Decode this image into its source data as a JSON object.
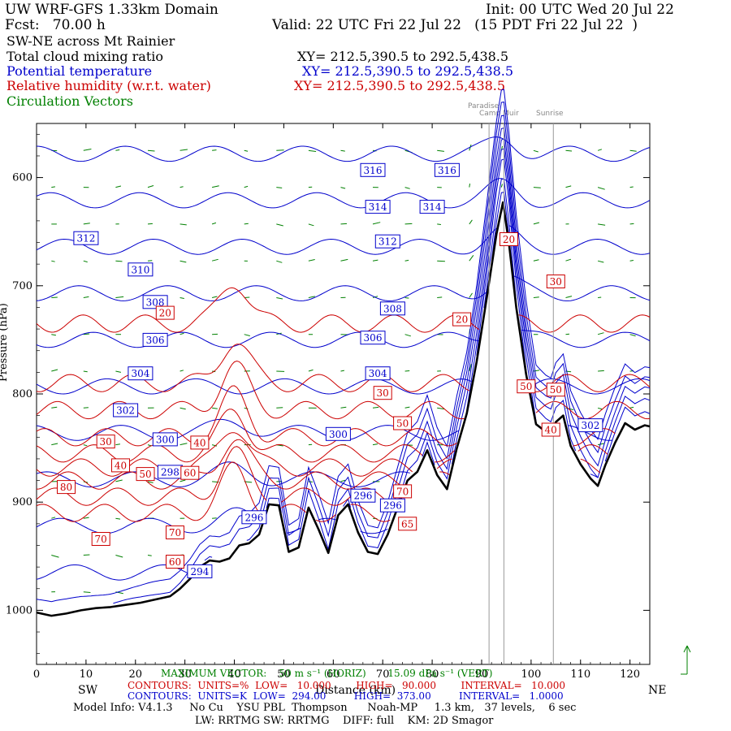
{
  "header": {
    "title": "UW WRF-GFS 1.33km Domain",
    "init": "Init: 00 UTC Wed 20 Jul 22",
    "fcst": "Fcst:   70.00 h",
    "valid": "Valid: 22 UTC Fri 22 Jul 22   (15 PDT Fri 22 Jul 22  )",
    "cross_section": "SW-NE across Mt Rainier",
    "field1": "Total cloud mixing ratio",
    "field2": "Potential temperature",
    "field3": "Relative humidity (w.r.t. water)",
    "field4": "Circulation Vectors",
    "xy1": "XY= 212.5,390.5 to 292.5,438.5",
    "xy2": "XY= 212.5,390.5 to 292.5,438.5",
    "xy3": "XY= 212.5,390.5 to 292.5,438.5"
  },
  "landmarks": [
    "Paradise",
    "Camp Muir",
    "Sunrise"
  ],
  "colors": {
    "theta": "#0000cc",
    "rh": "#cc0000",
    "vectors": "#008000",
    "terrain": "#000000"
  },
  "chart_data": {
    "type": "cross-section",
    "x_unit": "km",
    "xlim": [
      0,
      124
    ],
    "ylim_hpa": [
      1050,
      550
    ],
    "x_ticks": [
      0,
      10,
      20,
      30,
      40,
      50,
      60,
      70,
      80,
      90,
      100,
      110,
      120
    ],
    "y_ticks": [
      600,
      700,
      800,
      900,
      1000
    ],
    "y_tick_labels": [
      "600",
      "700",
      "800",
      "900",
      "1000"
    ],
    "xlabel": "Distance (km)",
    "ylabel": "Pressure (hPa)",
    "left_dir": "SW",
    "right_dir": "NE",
    "landmark_x": [
      91.5,
      94.5,
      104.5
    ],
    "terrain": {
      "x": [
        0,
        3,
        6,
        9,
        12,
        15,
        18,
        21,
        24,
        27,
        29,
        31,
        33,
        35,
        37,
        39,
        41,
        43,
        45,
        47,
        49,
        51,
        53,
        55,
        57,
        59,
        61,
        63,
        65,
        67,
        69,
        71,
        73,
        75,
        77,
        79,
        81,
        83,
        85,
        87,
        89,
        91,
        93,
        94.3,
        95.5,
        97,
        99,
        101,
        103,
        104,
        105,
        106.5,
        108,
        110,
        112,
        113.5,
        115,
        117,
        119,
        121,
        123,
        124
      ],
      "p": [
        1002,
        1005,
        1003,
        1000,
        998,
        997,
        995,
        993,
        990,
        987,
        980,
        971,
        960,
        954,
        955,
        952,
        940,
        938,
        930,
        902,
        903,
        946,
        942,
        905,
        925,
        947,
        912,
        902,
        928,
        946,
        948,
        930,
        905,
        880,
        872,
        852,
        875,
        888,
        850,
        818,
        770,
        712,
        652,
        623,
        660,
        720,
        782,
        828,
        835,
        837,
        826,
        820,
        848,
        865,
        878,
        885,
        866,
        845,
        827,
        833,
        829,
        830
      ]
    },
    "theta_levels": [
      294,
      296,
      298,
      300,
      302,
      304,
      306,
      308,
      310,
      312,
      314,
      316
    ],
    "theta_labels": [
      {
        "text": "316",
        "x": 68,
        "p": 593
      },
      {
        "text": "316",
        "x": 83,
        "p": 593
      },
      {
        "text": "314",
        "x": 69,
        "p": 627
      },
      {
        "text": "314",
        "x": 80,
        "p": 627
      },
      {
        "text": "312",
        "x": 10,
        "p": 656
      },
      {
        "text": "312",
        "x": 71,
        "p": 659
      },
      {
        "text": "310",
        "x": 21,
        "p": 685
      },
      {
        "text": "308",
        "x": 24,
        "p": 715
      },
      {
        "text": "308",
        "x": 72,
        "p": 721
      },
      {
        "text": "306",
        "x": 24,
        "p": 750
      },
      {
        "text": "306",
        "x": 68,
        "p": 748
      },
      {
        "text": "304",
        "x": 21,
        "p": 781
      },
      {
        "text": "304",
        "x": 69,
        "p": 781
      },
      {
        "text": "302",
        "x": 18,
        "p": 815
      },
      {
        "text": "302",
        "x": 112,
        "p": 829
      },
      {
        "text": "300",
        "x": 26,
        "p": 842
      },
      {
        "text": "300",
        "x": 61,
        "p": 837
      },
      {
        "text": "298",
        "x": 27,
        "p": 872
      },
      {
        "text": "296",
        "x": 66,
        "p": 894
      },
      {
        "text": "296",
        "x": 72,
        "p": 903
      },
      {
        "text": "296",
        "x": 44,
        "p": 914
      },
      {
        "text": "294",
        "x": 33,
        "p": 964
      }
    ],
    "rh_labels": [
      {
        "text": "20",
        "x": 26,
        "p": 725
      },
      {
        "text": "20",
        "x": 86,
        "p": 731
      },
      {
        "text": "20",
        "x": 95.5,
        "p": 657
      },
      {
        "text": "30",
        "x": 105,
        "p": 696
      },
      {
        "text": "30",
        "x": 70,
        "p": 799
      },
      {
        "text": "30",
        "x": 14,
        "p": 844
      },
      {
        "text": "40",
        "x": 33,
        "p": 845
      },
      {
        "text": "40",
        "x": 17,
        "p": 866
      },
      {
        "text": "40",
        "x": 104,
        "p": 833
      },
      {
        "text": "50",
        "x": 74,
        "p": 827
      },
      {
        "text": "50",
        "x": 22,
        "p": 874
      },
      {
        "text": "50",
        "x": 99,
        "p": 793
      },
      {
        "text": "50",
        "x": 105,
        "p": 796
      },
      {
        "text": "60",
        "x": 31,
        "p": 873
      },
      {
        "text": "60",
        "x": 28,
        "p": 955
      },
      {
        "text": "65",
        "x": 75,
        "p": 920
      },
      {
        "text": "70",
        "x": 74,
        "p": 890
      },
      {
        "text": "70",
        "x": 13,
        "p": 934
      },
      {
        "text": "70",
        "x": 28,
        "p": 928
      },
      {
        "text": "80",
        "x": 6,
        "p": 886
      }
    ],
    "bottom_info": {
      "max_vector": "MAXIMUM VECTOR:    50 m s⁻¹ (HORIZ)       15.09 dPa s⁻¹ (VERT)",
      "rh_contours": "CONTOURS:  UNITS=%  LOW=   10.000        HIGH=   90.000        INTERVAL=   10.000",
      "theta_contours": "CONTOURS:  UNITS=K  LOW=  294.00         HIGH=  373.00         INTERVAL=   1.0000",
      "model_info": "Model Info: V4.1.3     No Cu    YSU PBL  Thompson      Noah-MP     1.3 km,   37 levels,    6 sec",
      "physics": "LW: RRTMG SW: RRTMG    DIFF: full    KM: 2D Smagor"
    }
  }
}
